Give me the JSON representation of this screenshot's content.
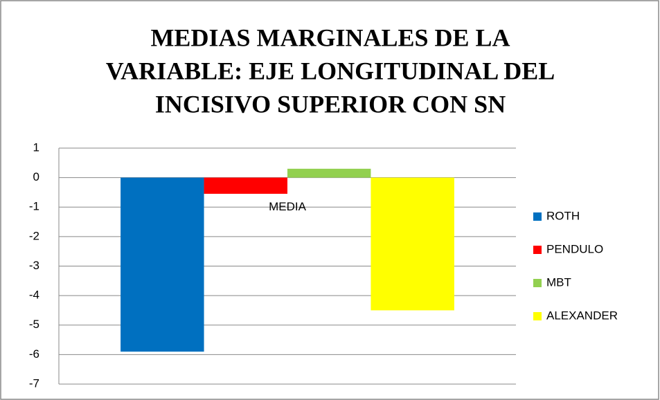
{
  "chart_data": {
    "type": "bar",
    "title": [
      "MEDIAS MARGINALES DE LA",
      "VARIABLE: EJE LONGITUDINAL DEL",
      "INCISIVO SUPERIOR CON SN"
    ],
    "categories": [
      "MEDIA"
    ],
    "series": [
      {
        "name": "ROTH",
        "color": "#0070c0",
        "values": [
          -5.9
        ]
      },
      {
        "name": "PENDULO",
        "color": "#ff0000",
        "values": [
          -0.55
        ]
      },
      {
        "name": "MBT",
        "color": "#92d050",
        "values": [
          0.3
        ]
      },
      {
        "name": "ALEXANDER",
        "color": "#ffff00",
        "values": [
          -4.5
        ]
      }
    ],
    "ylim": [
      -7,
      1
    ],
    "yticks": [
      -7,
      -6,
      -5,
      -4,
      -3,
      -2,
      -1,
      0,
      1
    ],
    "grid": true,
    "legend": "right"
  }
}
